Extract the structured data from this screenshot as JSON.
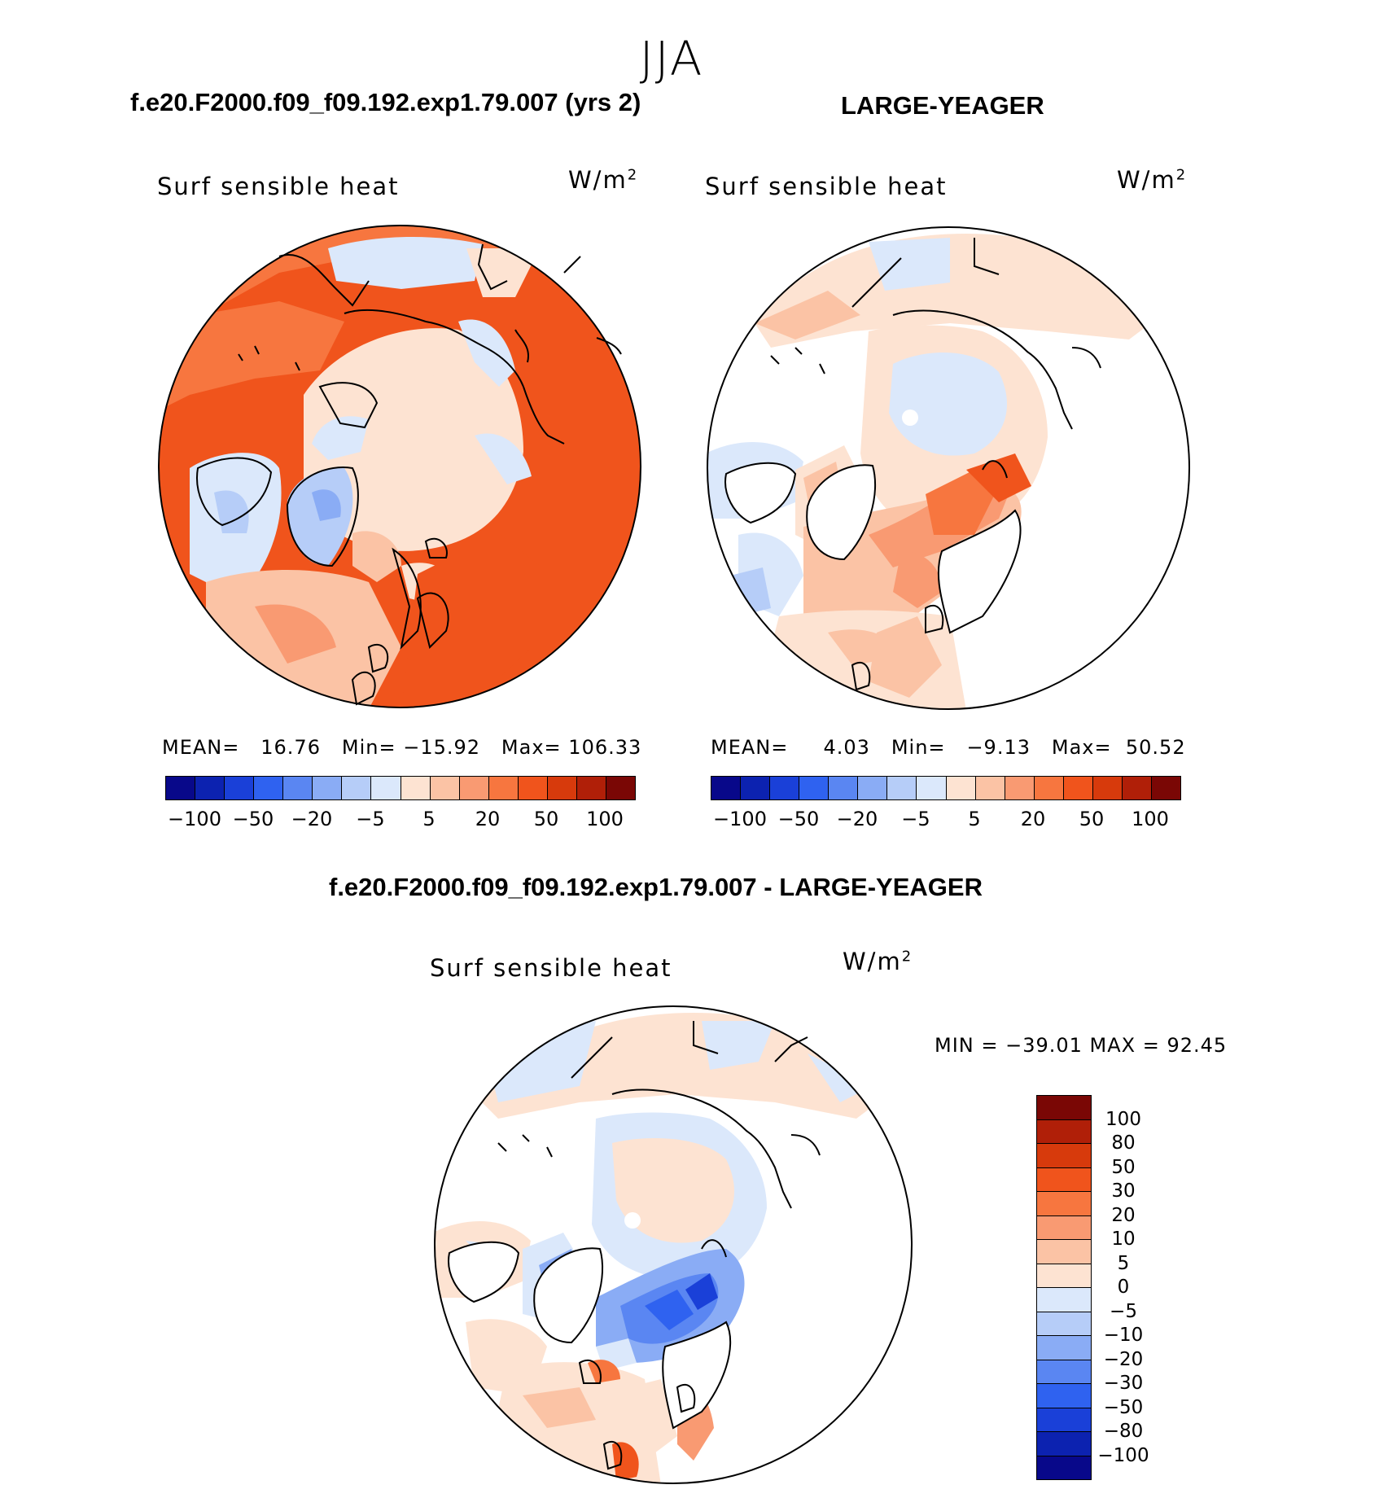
{
  "season": "JJA",
  "panels": [
    {
      "case": "f.e20.F2000.f09_f09.192.exp1.79.007 (yrs 2)",
      "variable": "Surf sensible heat",
      "units": "W/m",
      "units_exp": "2",
      "stats": {
        "mean_label": "MEAN=",
        "mean": "16.76",
        "min_label": "Min=",
        "min": "−15.92",
        "max_label": "Max=",
        "max": "106.33"
      }
    },
    {
      "case": "LARGE-YEAGER",
      "variable": "Surf sensible heat",
      "units": "W/m",
      "units_exp": "2",
      "stats": {
        "mean_label": "MEAN=",
        "mean": "4.03",
        "min_label": "Min=",
        "min": "−9.13",
        "max_label": "Max=",
        "max": "50.52"
      }
    },
    {
      "case": "f.e20.F2000.f09_f09.192.exp1.79.007 - LARGE-YEAGER",
      "variable": "Surf sensible heat",
      "units": "W/m",
      "units_exp": "2",
      "stats": {
        "text": "MIN = −39.01 MAX =   92.45"
      }
    }
  ],
  "colorbar_top": {
    "colors": [
      "#08088a",
      "#0c22b0",
      "#1a40d8",
      "#2f62f0",
      "#5a86f2",
      "#8aacf5",
      "#b6cdf8",
      "#dbe8fb",
      "#fde3d2",
      "#fbc3a5",
      "#f99a72",
      "#f7763f",
      "#f0541c",
      "#d73a0c",
      "#b01f08",
      "#7a0705"
    ],
    "labels": [
      "−100",
      "−50",
      "−20",
      "−5",
      "5",
      "20",
      "50",
      "100"
    ]
  },
  "colorbar_diff": {
    "colors": [
      "#7a0705",
      "#b01f08",
      "#d73a0c",
      "#f0541c",
      "#f7763f",
      "#f99a72",
      "#fbc3a5",
      "#fde3d2",
      "#dbe8fb",
      "#b6cdf8",
      "#8aacf5",
      "#5a86f2",
      "#2f62f0",
      "#1a40d8",
      "#0c22b0",
      "#08088a"
    ],
    "labels": [
      "100",
      "80",
      "50",
      "30",
      "20",
      "10",
      "5",
      "0",
      "−5",
      "−10",
      "−20",
      "−30",
      "−50",
      "−80",
      "−100"
    ]
  }
}
